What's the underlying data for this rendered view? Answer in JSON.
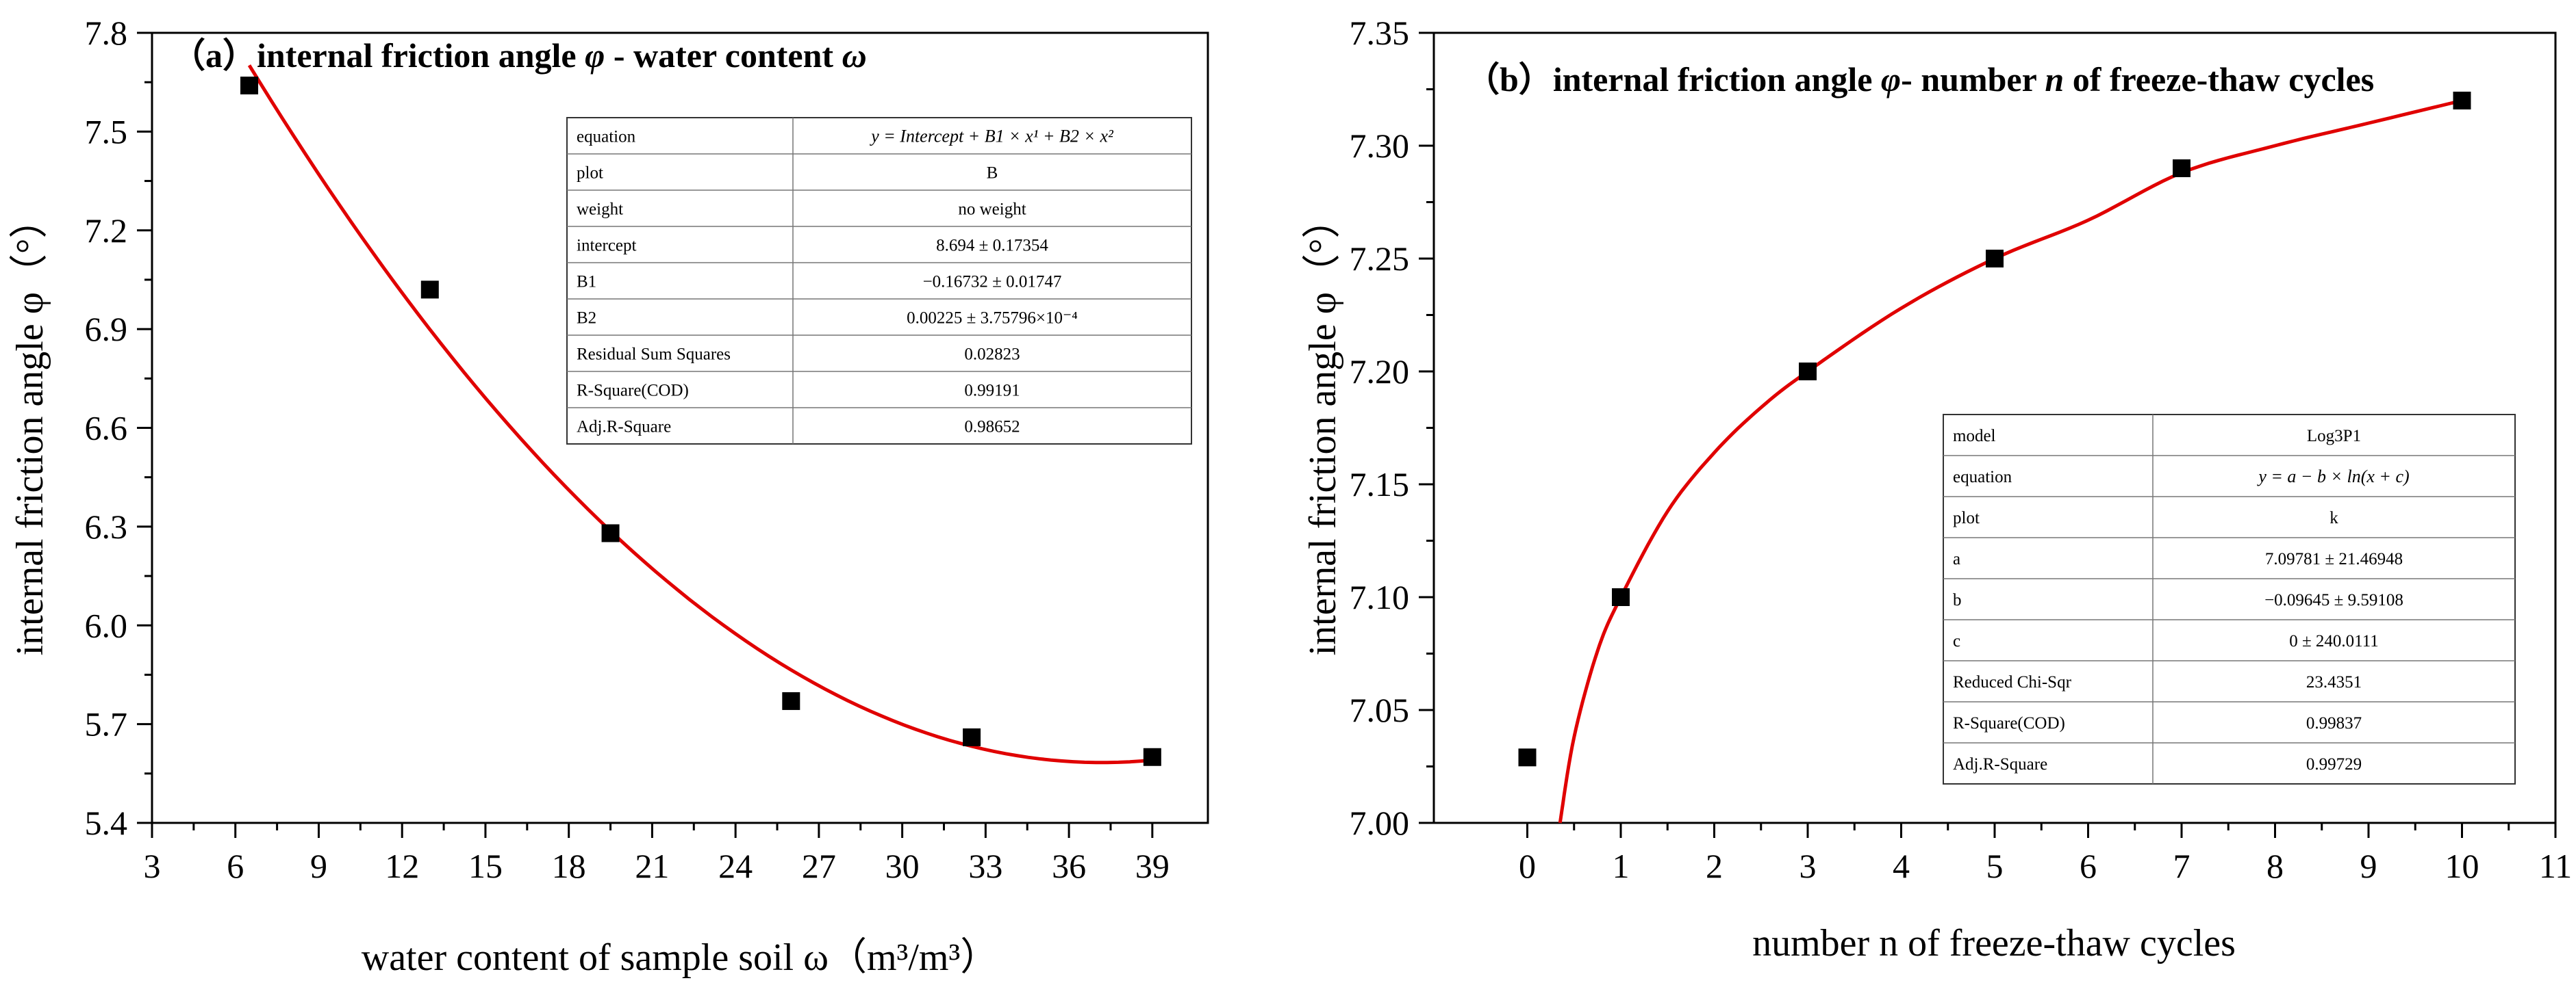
{
  "chart_data": [
    {
      "type": "scatter",
      "title": "(a) internal friction angle φ - water content ω",
      "title_prefix": "（a）",
      "title_text": "internal friction angle ",
      "title_sym1": "φ",
      "title_mid": " - water content ",
      "title_sym2": "ω",
      "xlabel": "water content of sample soil ω（m³/m³）",
      "ylabel": "internal friction angle φ（°）",
      "xlim": [
        3,
        41
      ],
      "ylim": [
        5.4,
        7.8
      ],
      "xticks": [
        "3",
        "6",
        "9",
        "12",
        "15",
        "18",
        "21",
        "24",
        "27",
        "30",
        "33",
        "36",
        "39"
      ],
      "yticks": [
        "5.4",
        "5.7",
        "6.0",
        "6.3",
        "6.6",
        "6.9",
        "7.2",
        "7.5",
        "7.8"
      ],
      "series": [
        {
          "name": "B",
          "x": [
            6.5,
            13.0,
            19.5,
            26.0,
            32.5,
            39.0
          ],
          "y": [
            7.64,
            7.02,
            6.28,
            5.77,
            5.66,
            5.6
          ]
        }
      ],
      "fit": {
        "model": "polynomial",
        "intercept": 8.694,
        "b1": -0.16732,
        "b2": 0.00225,
        "x_range": [
          6.5,
          39.0
        ]
      },
      "table": [
        [
          "equation",
          "y = Intercept + B1 × x¹ + B2 × x²"
        ],
        [
          "plot",
          "B"
        ],
        [
          "weight",
          "no weight"
        ],
        [
          "intercept",
          "8.694 ± 0.17354"
        ],
        [
          "B1",
          "−0.16732 ± 0.01747"
        ],
        [
          "B2",
          "0.00225 ± 3.75796×10⁻⁴"
        ],
        [
          "Residual Sum Squares",
          "0.02823"
        ],
        [
          "R-Square(COD)",
          "0.99191"
        ],
        [
          "Adj.R-Square",
          "0.98652"
        ]
      ],
      "legend_position": "top-right"
    },
    {
      "type": "scatter",
      "title": "(b) internal friction angle φ- number n of freeze-thaw cycles",
      "title_prefix": "（b）",
      "title_text": "internal friction angle ",
      "title_sym1": "φ",
      "title_mid": "- number ",
      "title_sym2": "n",
      "title_end": " of freeze-thaw cycles",
      "xlabel": "number n of freeze-thaw cycles",
      "ylabel": "internal friction angle φ（°）",
      "xlim": [
        -1,
        11
      ],
      "ylim": [
        7.0,
        7.35
      ],
      "xticks": [
        "0",
        "1",
        "2",
        "3",
        "4",
        "5",
        "6",
        "7",
        "8",
        "9",
        "10",
        "11"
      ],
      "yticks": [
        "7.00",
        "7.05",
        "7.10",
        "7.15",
        "7.20",
        "7.25",
        "7.30",
        "7.35"
      ],
      "series": [
        {
          "name": "k",
          "x": [
            0,
            1,
            3,
            5,
            7,
            10
          ],
          "y": [
            7.029,
            7.1,
            7.2,
            7.25,
            7.29,
            7.32
          ]
        }
      ],
      "fit": {
        "model": "Log3P1",
        "curve_x": [
          0.35,
          0.5,
          0.75,
          1,
          1.5,
          2,
          2.5,
          3,
          4,
          5,
          6,
          7,
          8,
          9,
          10
        ],
        "curve_y": [
          7.0,
          7.038,
          7.076,
          7.1,
          7.138,
          7.164,
          7.184,
          7.2,
          7.228,
          7.25,
          7.267,
          7.288,
          7.3,
          7.31,
          7.32
        ]
      },
      "table": [
        [
          "model",
          "Log3P1"
        ],
        [
          "equation",
          "y = a − b × ln(x + c)"
        ],
        [
          "plot",
          "k"
        ],
        [
          "a",
          "7.09781 ± 21.46948"
        ],
        [
          "b",
          "−0.09645 ± 9.59108"
        ],
        [
          "c",
          "0 ± 240.0111"
        ],
        [
          "Reduced Chi-Sqr",
          "23.4351"
        ],
        [
          "R-Square(COD)",
          "0.99837"
        ],
        [
          "Adj.R-Square",
          "0.99729"
        ]
      ],
      "legend_position": "bottom-right"
    }
  ]
}
